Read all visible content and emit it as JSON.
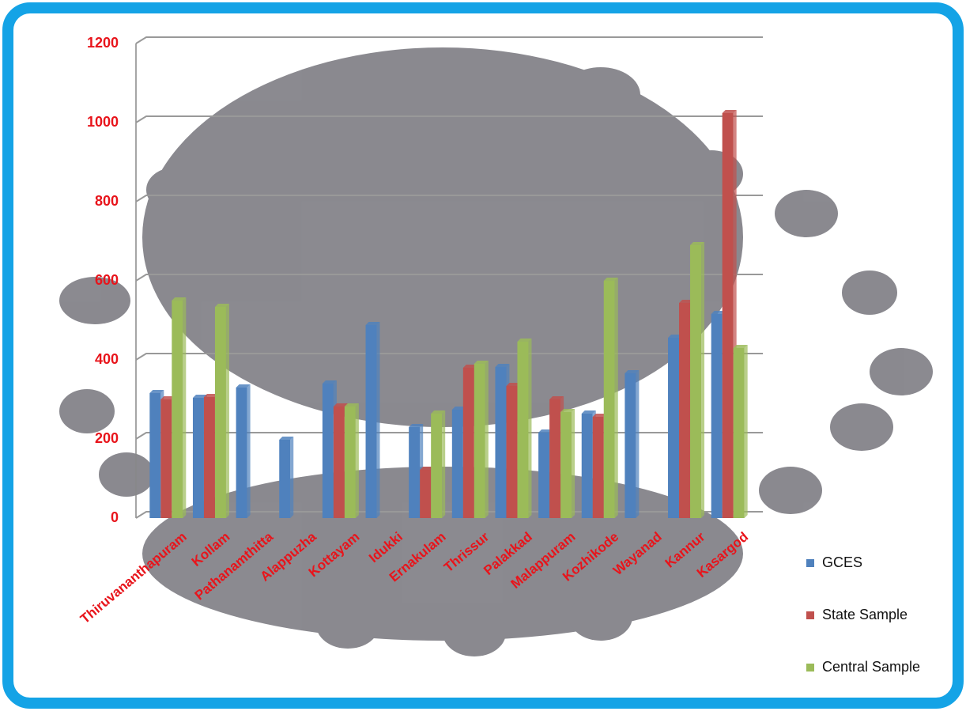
{
  "chart_data": {
    "type": "bar",
    "categories": [
      "Thiruvananthapuram",
      "Kollam",
      "Pathanamthitta",
      "Alappuzha",
      "Kottayam",
      "Idukki",
      "Ernakulam",
      "Thrissur",
      "Palakkad",
      "Malappuram",
      "Kozhikode",
      "Wayanad",
      "Kannur",
      "Kasargod"
    ],
    "series": [
      {
        "name": "GCES",
        "color": "#4f81bd",
        "values": [
          316,
          304,
          330,
          198,
          340,
          488,
          230,
          274,
          382,
          216,
          264,
          366,
          456,
          516
        ]
      },
      {
        "name": "State Sample",
        "color": "#c0504d",
        "values": [
          300,
          306,
          null,
          null,
          282,
          null,
          122,
          380,
          334,
          300,
          256,
          null,
          544,
          1024
        ]
      },
      {
        "name": "Central Sample",
        "color": "#9bbb59",
        "values": [
          550,
          534,
          null,
          null,
          282,
          null,
          264,
          390,
          446,
          268,
          600,
          null,
          690,
          430
        ]
      }
    ],
    "ylim": [
      0,
      1200
    ],
    "yticks": [
      0,
      200,
      400,
      600,
      800,
      1000,
      1200
    ],
    "grid": true,
    "legend": "right"
  }
}
